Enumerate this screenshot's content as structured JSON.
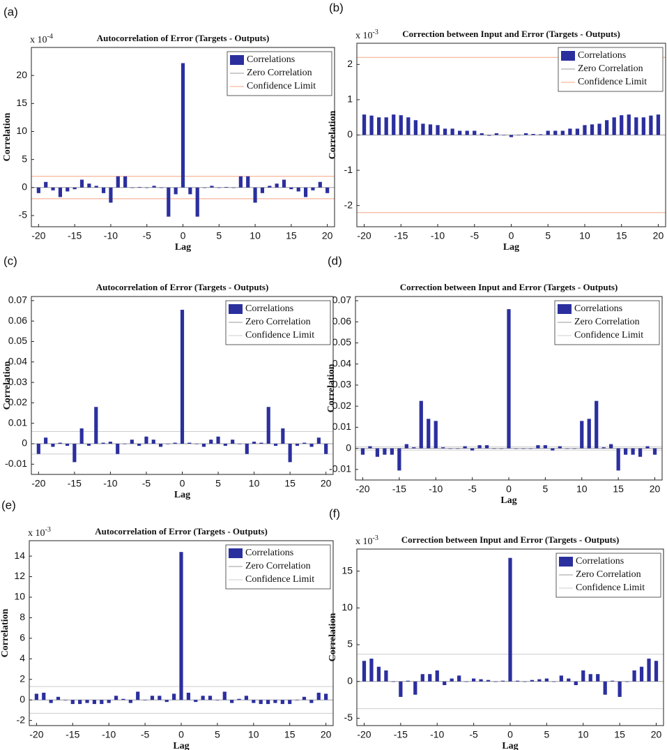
{
  "chart_data": [
    {
      "type": "bar",
      "panel": "(a)",
      "title": "Autocorrelation of Error (Targets - Outputs)",
      "multiplier": "x 10",
      "exponent": "-4",
      "xlabel": "Lag",
      "ylabel": "Correlation",
      "x": [
        -20,
        -19,
        -18,
        -17,
        -16,
        -15,
        -14,
        -13,
        -12,
        -11,
        -10,
        -9,
        -8,
        -7,
        -6,
        -5,
        -4,
        -3,
        -2,
        -1,
        0,
        1,
        2,
        3,
        4,
        5,
        6,
        7,
        8,
        9,
        10,
        11,
        12,
        13,
        14,
        15,
        16,
        17,
        18,
        19,
        20
      ],
      "series": [
        {
          "name": "Correlations",
          "color": "#2b2f9e",
          "values": [
            -1,
            1,
            -0.5,
            -1.7,
            -0.7,
            -0.3,
            1.4,
            0.7,
            0.3,
            -1,
            -2.7,
            2,
            2,
            0,
            0.1,
            0,
            0.3,
            0,
            -5.2,
            -1.2,
            22.2,
            -1.2,
            -5.2,
            0,
            0.3,
            0,
            0.1,
            0,
            2,
            2,
            -2.7,
            -1,
            0.3,
            0.7,
            1.4,
            -0.3,
            -0.7,
            -1.7,
            -0.5,
            1,
            -1
          ]
        }
      ],
      "reference_lines": [
        {
          "name": "Zero Correlation",
          "color": "#999999",
          "values": [
            0
          ]
        },
        {
          "name": "Confidence Limit",
          "color": "#f4a582",
          "values": [
            -2,
            2
          ]
        }
      ],
      "xlim": [
        -21,
        21
      ],
      "ylim": [
        -7,
        25
      ],
      "xticks": [
        -20,
        -15,
        -10,
        -5,
        0,
        5,
        10,
        15,
        20
      ],
      "yticks": [
        -5,
        0,
        5,
        10,
        15,
        20
      ]
    },
    {
      "type": "bar",
      "panel": "(b)",
      "title": "Correction between Input and Error (Targets - Outputs)",
      "multiplier": "x 10",
      "exponent": "-3",
      "xlabel": "Lag",
      "ylabel": "Correlation",
      "x": [
        -20,
        -19,
        -18,
        -17,
        -16,
        -15,
        -14,
        -13,
        -12,
        -11,
        -10,
        -9,
        -8,
        -7,
        -6,
        -5,
        -4,
        -3,
        -2,
        -1,
        0,
        1,
        2,
        3,
        4,
        5,
        6,
        7,
        8,
        9,
        10,
        11,
        12,
        13,
        14,
        15,
        16,
        17,
        18,
        19,
        20
      ],
      "series": [
        {
          "name": "Correlations",
          "color": "#2b2f9e",
          "values": [
            0.58,
            0.55,
            0.5,
            0.5,
            0.58,
            0.56,
            0.5,
            0.42,
            0.32,
            0.3,
            0.28,
            0.18,
            0.18,
            0.12,
            0.12,
            0.12,
            0.05,
            -0.02,
            0.05,
            0,
            -0.06,
            0,
            0.05,
            0.03,
            0.02,
            0.12,
            0.12,
            0.12,
            0.18,
            0.18,
            0.28,
            0.3,
            0.32,
            0.42,
            0.5,
            0.56,
            0.58,
            0.5,
            0.5,
            0.55,
            0.58
          ]
        }
      ],
      "reference_lines": [
        {
          "name": "Zero Correlation",
          "color": "#999999",
          "values": [
            0
          ]
        },
        {
          "name": "Confidence Limit",
          "color": "#f4a582",
          "values": [
            -2.2,
            2.2
          ]
        }
      ],
      "xlim": [
        -21,
        21
      ],
      "ylim": [
        -2.6,
        2.6
      ],
      "xticks": [
        -20,
        -15,
        -10,
        -5,
        0,
        5,
        10,
        15,
        20
      ],
      "yticks": [
        -2,
        -1,
        0,
        1,
        2
      ]
    },
    {
      "type": "bar",
      "panel": "(c)",
      "title": "Autocorrelation of Error (Targets - Outputs)",
      "xlabel": "Lag",
      "ylabel": "Correlation",
      "x": [
        -20,
        -19,
        -18,
        -17,
        -16,
        -15,
        -14,
        -13,
        -12,
        -11,
        -10,
        -9,
        -8,
        -7,
        -6,
        -5,
        -4,
        -3,
        -2,
        -1,
        0,
        1,
        2,
        3,
        4,
        5,
        6,
        7,
        8,
        9,
        10,
        11,
        12,
        13,
        14,
        15,
        16,
        17,
        18,
        19,
        20
      ],
      "series": [
        {
          "name": "Correlations",
          "color": "#2b2f9e",
          "values": [
            -0.005,
            0.003,
            -0.0015,
            0.0005,
            -0.001,
            -0.009,
            0.0075,
            -0.001,
            0.018,
            0.0005,
            0.001,
            -0.005,
            0,
            0.002,
            -0.001,
            0.0035,
            0.002,
            -0.0015,
            0,
            0.0005,
            0.0655,
            0.0005,
            0,
            -0.0015,
            0.002,
            0.0035,
            -0.001,
            0.002,
            0,
            -0.005,
            0.001,
            0.0005,
            0.018,
            -0.001,
            0.0075,
            -0.009,
            -0.001,
            0.0005,
            -0.0015,
            0.003,
            -0.005
          ]
        }
      ],
      "reference_lines": [
        {
          "name": "Zero Correlation",
          "color": "#999999",
          "values": [
            0
          ]
        },
        {
          "name": "Confidence Limit",
          "color": "#cccccc",
          "values": [
            -0.005,
            0.006
          ]
        }
      ],
      "xlim": [
        -21,
        21
      ],
      "ylim": [
        -0.015,
        0.072
      ],
      "xticks": [
        -20,
        -15,
        -10,
        -5,
        0,
        5,
        10,
        15,
        20
      ],
      "yticks": [
        -0.01,
        0,
        0.01,
        0.02,
        0.03,
        0.04,
        0.05,
        0.06,
        0.07
      ]
    },
    {
      "type": "bar",
      "panel": "(d)",
      "title": "Correction between Input and Error (Targets - Outputs)",
      "xlabel": "Lag",
      "ylabel": "Correlation",
      "x": [
        -20,
        -19,
        -18,
        -17,
        -16,
        -15,
        -14,
        -13,
        -12,
        -11,
        -10,
        -9,
        -8,
        -7,
        -6,
        -5,
        -4,
        -3,
        -2,
        -1,
        0,
        1,
        2,
        3,
        4,
        5,
        6,
        7,
        8,
        9,
        10,
        11,
        12,
        13,
        14,
        15,
        16,
        17,
        18,
        19,
        20
      ],
      "series": [
        {
          "name": "Correlations",
          "color": "#2b2f9e",
          "values": [
            -0.003,
            0.001,
            -0.004,
            -0.003,
            -0.003,
            -0.0105,
            0.002,
            0.0005,
            0.0225,
            0.014,
            0.013,
            0.0005,
            0,
            0,
            0.001,
            -0.001,
            0.0015,
            0.0015,
            0,
            0,
            0.066,
            0,
            0,
            0,
            0.0015,
            0.0015,
            -0.001,
            0.001,
            0,
            0,
            0.013,
            0.014,
            0.0225,
            0.0005,
            0.002,
            -0.0105,
            -0.003,
            -0.003,
            -0.004,
            0.001,
            -0.003
          ]
        }
      ],
      "reference_lines": [
        {
          "name": "Zero Correlation",
          "color": "#999999",
          "values": [
            0
          ]
        },
        {
          "name": "Confidence Limit",
          "color": "#cccccc",
          "values": [
            -0.0008,
            0.0008
          ]
        }
      ],
      "xlim": [
        -21,
        21
      ],
      "ylim": [
        -0.015,
        0.072
      ],
      "xticks": [
        -20,
        -15,
        -10,
        -5,
        0,
        5,
        10,
        15,
        20
      ],
      "yticks": [
        -0.01,
        0,
        0.01,
        0.02,
        0.03,
        0.04,
        0.05,
        0.06,
        0.07
      ]
    },
    {
      "type": "bar",
      "panel": "(e)",
      "title": "Autocorrelation of Error (Targets - Outputs)",
      "multiplier": "x 10",
      "exponent": "-3",
      "xlabel": "Lag",
      "ylabel": "Correlation",
      "x": [
        -20,
        -19,
        -18,
        -17,
        -16,
        -15,
        -14,
        -13,
        -12,
        -11,
        -10,
        -9,
        -8,
        -7,
        -6,
        -5,
        -4,
        -3,
        -2,
        -1,
        0,
        1,
        2,
        3,
        4,
        5,
        6,
        7,
        8,
        9,
        10,
        11,
        12,
        13,
        14,
        15,
        16,
        17,
        18,
        19,
        20
      ],
      "series": [
        {
          "name": "Correlations",
          "color": "#2b2f9e",
          "values": [
            0.6,
            0.7,
            -0.3,
            0.3,
            0,
            -0.4,
            -0.4,
            -0.3,
            -0.4,
            -0.4,
            -0.3,
            0.4,
            0.1,
            -0.3,
            0.8,
            0,
            0.4,
            0.4,
            -0.2,
            0.6,
            14.4,
            0.7,
            -0.2,
            0.4,
            0.4,
            0,
            0.8,
            -0.3,
            0.1,
            0.4,
            -0.3,
            -0.4,
            -0.4,
            -0.3,
            -0.4,
            -0.4,
            0,
            0.3,
            -0.3,
            0.7,
            0.6
          ]
        }
      ],
      "reference_lines": [
        {
          "name": "Zero Correlation",
          "color": "#999999",
          "values": [
            0
          ]
        },
        {
          "name": "Confidence Limit",
          "color": "#cccccc",
          "values": [
            -1.3,
            1.3
          ]
        }
      ],
      "xlim": [
        -21,
        21
      ],
      "ylim": [
        -2.5,
        15.5
      ],
      "xticks": [
        -20,
        -15,
        -10,
        -5,
        0,
        5,
        10,
        15,
        20
      ],
      "yticks": [
        -2,
        0,
        2,
        4,
        6,
        8,
        10,
        12,
        14
      ]
    },
    {
      "type": "bar",
      "panel": "(f)",
      "title": "Correction between Input and Error (Targets - Outputs)",
      "multiplier": "x 10",
      "exponent": "-3",
      "xlabel": "Lag",
      "ylabel": "Correlation",
      "x": [
        -20,
        -19,
        -18,
        -17,
        -16,
        -15,
        -14,
        -13,
        -12,
        -11,
        -10,
        -9,
        -8,
        -7,
        -6,
        -5,
        -4,
        -3,
        -2,
        -1,
        0,
        1,
        2,
        3,
        4,
        5,
        6,
        7,
        8,
        9,
        10,
        11,
        12,
        13,
        14,
        15,
        16,
        17,
        18,
        19,
        20
      ],
      "series": [
        {
          "name": "Correlations",
          "color": "#2b2f9e",
          "values": [
            2.8,
            3.1,
            2,
            1.5,
            0,
            -2.1,
            0.1,
            -1.8,
            1,
            1,
            1.5,
            -0.5,
            0.4,
            0.8,
            0,
            0.4,
            0.3,
            0.2,
            0,
            0.1,
            16.8,
            0.1,
            0,
            0.2,
            0.3,
            0.4,
            0,
            0.8,
            0.4,
            -0.5,
            1.5,
            1,
            1,
            -1.8,
            0.1,
            -2.1,
            0,
            1.5,
            2,
            3.1,
            2.8
          ]
        }
      ],
      "reference_lines": [
        {
          "name": "Zero Correlation",
          "color": "#999999",
          "values": [
            0
          ]
        },
        {
          "name": "Confidence Limit",
          "color": "#cccccc",
          "values": [
            -3.7,
            3.7
          ]
        }
      ],
      "xlim": [
        -21,
        21
      ],
      "ylim": [
        -6,
        18
      ],
      "xticks": [
        -20,
        -15,
        -10,
        -5,
        0,
        5,
        10,
        15,
        20
      ],
      "yticks": [
        -5,
        0,
        5,
        10,
        15
      ]
    }
  ]
}
